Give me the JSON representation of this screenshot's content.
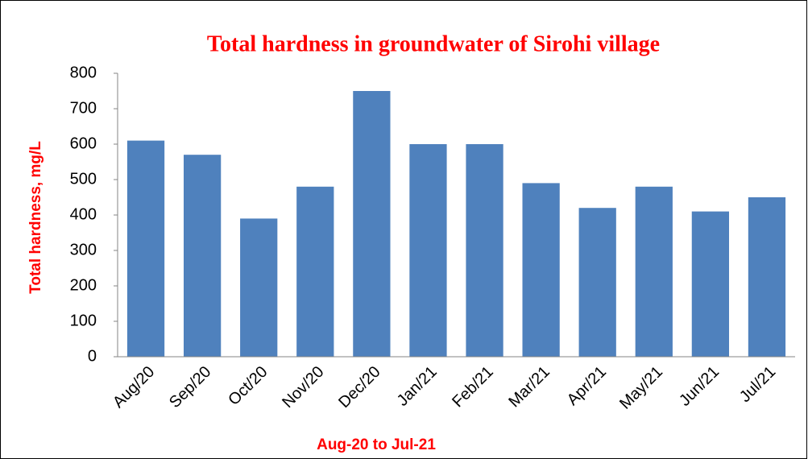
{
  "chart_data": {
    "type": "bar",
    "title": "Total hardness in groundwater of Sirohi village",
    "x_label": "Aug-20 to Jul-21",
    "y_label": "Total hardness, mg/L",
    "categories": [
      "Aug/20",
      "Sep/20",
      "Oct/20",
      "Nov/20",
      "Dec/20",
      "Jan/21",
      "Feb/21",
      "Mar/21",
      "Apr/21",
      "May/21",
      "Jun/21",
      "Jul/21"
    ],
    "values": [
      610,
      570,
      390,
      480,
      750,
      600,
      600,
      490,
      420,
      480,
      410,
      450
    ],
    "color": "#4f81bd",
    "ylim": [
      0,
      800
    ],
    "yticks": [
      0,
      100,
      200,
      300,
      400,
      500,
      600,
      700,
      800
    ],
    "grid": false
  }
}
